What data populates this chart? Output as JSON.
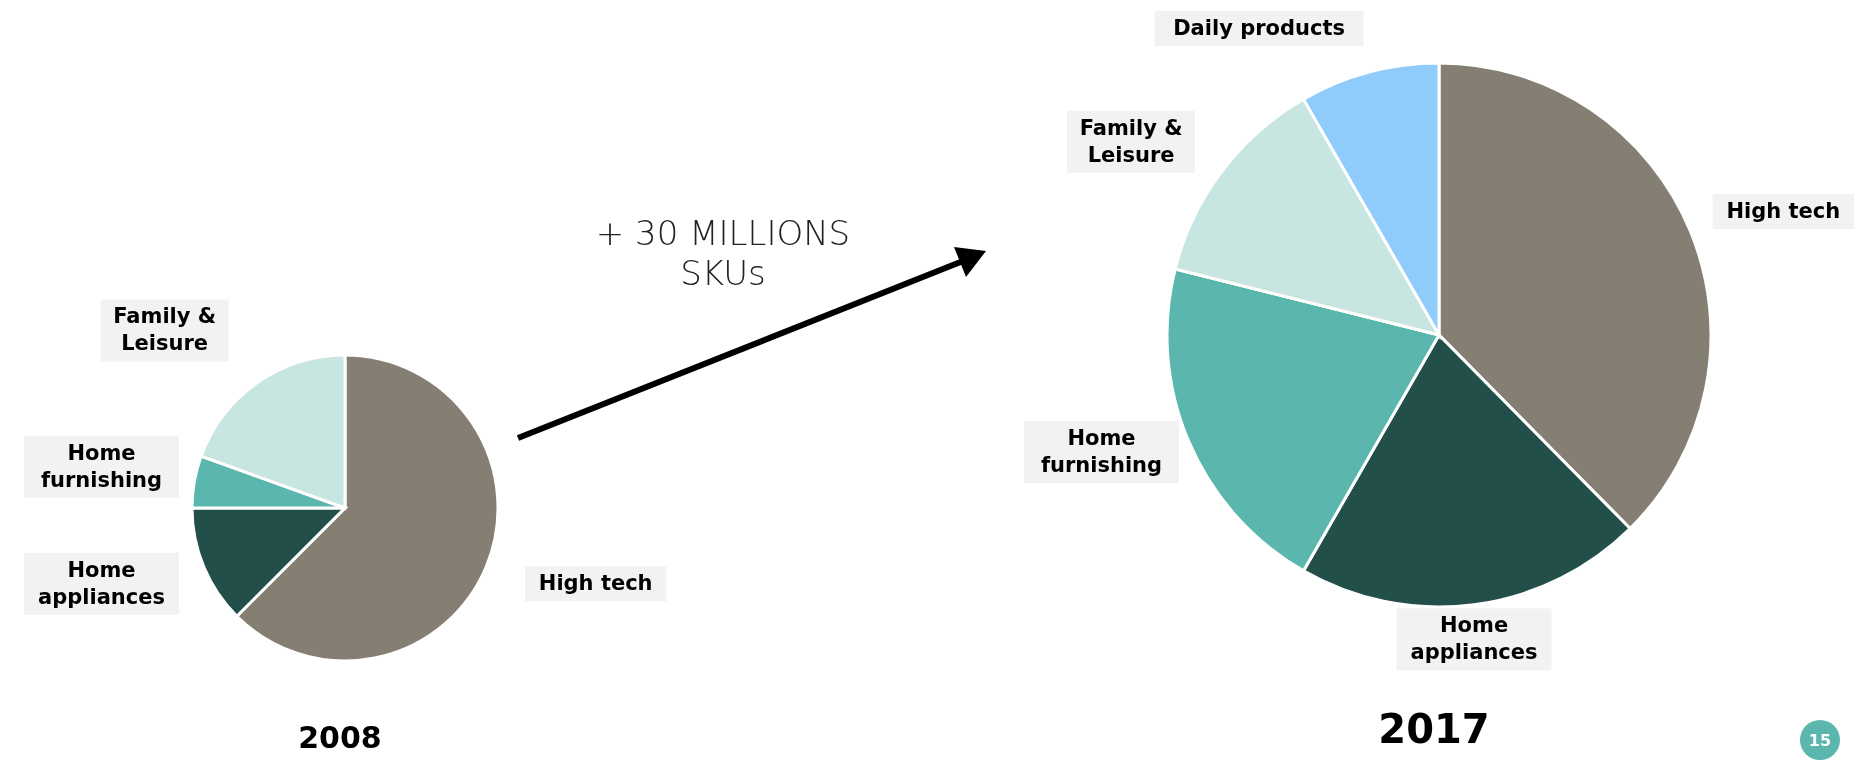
{
  "chart_data": [
    {
      "type": "pie",
      "title": "2008",
      "categories": [
        "High tech",
        "Home appliances",
        "Home furnishing",
        "Family & Leisure"
      ],
      "values": [
        62.5,
        12.5,
        5.5,
        19.5
      ],
      "colors": [
        "#857e73",
        "#234f4a",
        "#5bb7ad",
        "#c8e6e1"
      ],
      "annotations": [
        "+ 30 MILLIONS\nSKUs"
      ]
    },
    {
      "type": "pie",
      "title": "2017",
      "categories": [
        "High tech",
        "Home appliances",
        "Home furnishing",
        "Family & Leisure",
        "Daily products"
      ],
      "values": [
        37.6,
        20.7,
        20.6,
        12.8,
        8.3
      ],
      "colors": [
        "#857e73",
        "#234f4a",
        "#5bb7ad",
        "#c8e6e1",
        "#8fcbfb"
      ],
      "annotations": [
        "15"
      ]
    }
  ]
}
